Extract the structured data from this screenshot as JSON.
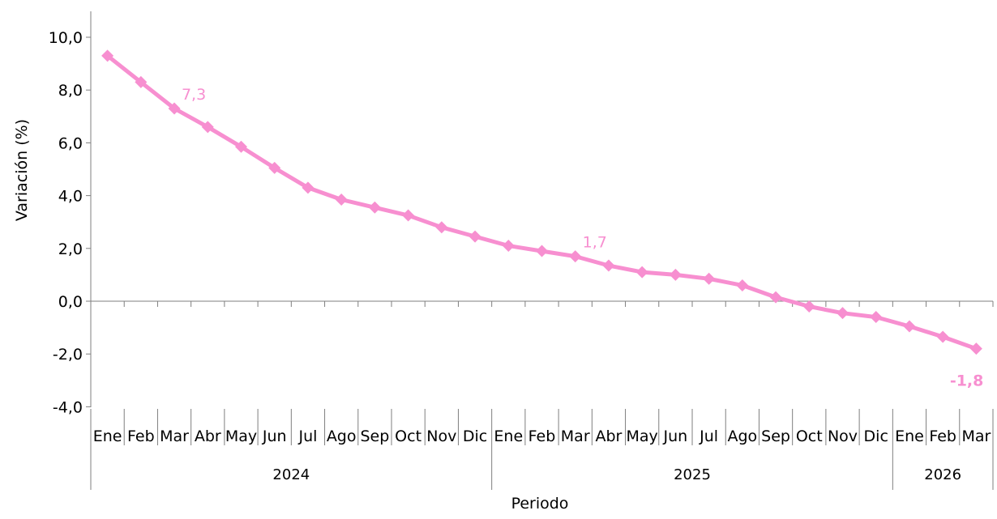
{
  "chart_data": {
    "type": "line",
    "title": "",
    "xlabel": "Periodo",
    "ylabel": "Variación (%)",
    "ylim": [
      -4.0,
      10.0
    ],
    "yticks": [
      "10,0",
      "8,0",
      "6,0",
      "4,0",
      "2,0",
      "0,0",
      "-2,0",
      "-4,0"
    ],
    "ytick_values": [
      10,
      8,
      6,
      4,
      2,
      0,
      -2,
      -4
    ],
    "grid": false,
    "categories": [
      "Ene",
      "Feb",
      "Mar",
      "Abr",
      "May",
      "Jun",
      "Jul",
      "Ago",
      "Sep",
      "Oct",
      "Nov",
      "Dic",
      "Ene",
      "Feb",
      "Mar",
      "Abr",
      "May",
      "Jun",
      "Jul",
      "Ago",
      "Sep",
      "Oct",
      "Nov",
      "Dic",
      "Ene",
      "Feb",
      "Mar"
    ],
    "years": [
      {
        "label": "2024",
        "months": 12
      },
      {
        "label": "2025",
        "months": 12
      },
      {
        "label": "2026",
        "months": 3
      }
    ],
    "series": [
      {
        "color": "#f78fd0",
        "marker": "diamond",
        "values": [
          9.3,
          8.3,
          7.3,
          6.6,
          5.85,
          5.05,
          4.3,
          3.85,
          3.55,
          3.25,
          2.8,
          2.45,
          2.1,
          1.9,
          1.7,
          1.35,
          1.1,
          1.0,
          0.85,
          0.6,
          0.15,
          -0.2,
          -0.45,
          -0.6,
          -0.95,
          -1.35,
          -1.8
        ]
      }
    ],
    "annotations": [
      {
        "index": 2,
        "text": "7,3",
        "bold": false
      },
      {
        "index": 14,
        "text": "1,7",
        "bold": false
      },
      {
        "index": 26,
        "text": "-1,8",
        "bold": true
      }
    ]
  }
}
